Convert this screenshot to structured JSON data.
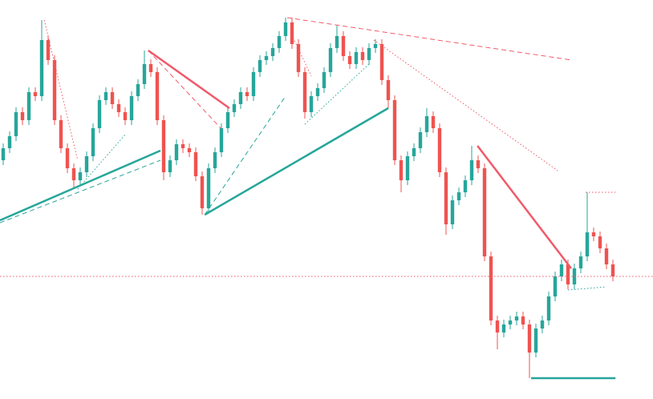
{
  "chart_data": {
    "type": "candlestick",
    "xlim": [
      -0.5,
      101.25
    ],
    "ylim": [
      0,
      498
    ],
    "up_color": "#26a69a",
    "down_color": "#ef5350",
    "open": [
      298,
      313,
      328,
      358,
      348,
      383,
      378,
      448,
      423,
      348,
      313,
      288,
      273,
      283,
      303,
      338,
      373,
      383,
      368,
      358,
      348,
      378,
      393,
      418,
      408,
      348,
      283,
      298,
      318,
      313,
      308,
      278,
      238,
      288,
      308,
      338,
      358,
      368,
      383,
      378,
      408,
      423,
      428,
      438,
      453,
      470,
      443,
      408,
      358,
      378,
      388,
      408,
      438,
      453,
      428,
      418,
      433,
      423,
      438,
      443,
      398,
      373,
      298,
      273,
      303,
      313,
      333,
      353,
      338,
      283,
      218,
      248,
      258,
      273,
      298,
      288,
      178,
      98,
      83,
      93,
      98,
      103,
      93,
      58,
      88,
      98,
      128,
      153,
      168,
      143,
      163,
      178,
      208,
      203,
      188,
      168
    ],
    "high": [
      319,
      334,
      364,
      364,
      389,
      389,
      473,
      454,
      429,
      354,
      319,
      294,
      289,
      309,
      344,
      379,
      389,
      389,
      374,
      364,
      384,
      399,
      435,
      424,
      414,
      354,
      304,
      324,
      324,
      319,
      314,
      284,
      294,
      314,
      344,
      364,
      374,
      389,
      389,
      414,
      429,
      434,
      444,
      459,
      476,
      476,
      449,
      414,
      384,
      394,
      414,
      444,
      466,
      459,
      434,
      439,
      439,
      444,
      449,
      449,
      404,
      379,
      304,
      309,
      319,
      339,
      363,
      359,
      344,
      289,
      254,
      264,
      279,
      316,
      304,
      294,
      184,
      104,
      99,
      104,
      109,
      109,
      99,
      94,
      104,
      134,
      159,
      174,
      174,
      169,
      184,
      258,
      214,
      209,
      194,
      174
    ],
    "low": [
      292,
      307,
      322,
      342,
      342,
      372,
      372,
      417,
      342,
      307,
      282,
      262,
      267,
      277,
      297,
      332,
      367,
      362,
      352,
      342,
      342,
      372,
      387,
      402,
      342,
      273,
      277,
      292,
      307,
      302,
      272,
      230,
      232,
      282,
      302,
      332,
      352,
      362,
      372,
      372,
      402,
      417,
      422,
      432,
      447,
      437,
      402,
      350,
      352,
      372,
      382,
      402,
      432,
      422,
      412,
      412,
      417,
      417,
      432,
      392,
      363,
      292,
      258,
      267,
      297,
      307,
      327,
      332,
      277,
      205,
      212,
      242,
      252,
      267,
      282,
      172,
      92,
      62,
      77,
      87,
      92,
      87,
      26,
      52,
      82,
      92,
      122,
      147,
      137,
      137,
      157,
      172,
      197,
      182,
      162,
      147
    ],
    "close": [
      313,
      328,
      358,
      348,
      383,
      378,
      448,
      423,
      348,
      313,
      288,
      273,
      283,
      303,
      338,
      373,
      383,
      368,
      358,
      348,
      378,
      393,
      418,
      408,
      348,
      283,
      298,
      318,
      313,
      308,
      278,
      238,
      288,
      308,
      338,
      358,
      368,
      383,
      378,
      408,
      423,
      428,
      438,
      453,
      470,
      443,
      408,
      358,
      378,
      388,
      408,
      438,
      453,
      428,
      418,
      433,
      423,
      438,
      443,
      398,
      373,
      298,
      273,
      303,
      313,
      333,
      353,
      338,
      283,
      218,
      248,
      258,
      273,
      298,
      288,
      178,
      98,
      83,
      93,
      98,
      103,
      93,
      58,
      88,
      98,
      128,
      153,
      168,
      143,
      163,
      178,
      208,
      203,
      188,
      168,
      153
    ],
    "lines": [
      {
        "color": "#26a69a",
        "style": "solid",
        "width": 2.5,
        "x": [
          -0.5,
          24.5
        ],
        "values": [
          223,
          310
        ]
      },
      {
        "color": "#26a69a",
        "style": "dashed",
        "width": 1,
        "x": [
          -0.5,
          24.5
        ],
        "values": [
          220,
          298
        ]
      },
      {
        "color": "#26a69a",
        "style": "solid",
        "width": 2.5,
        "x": [
          31.4,
          60
        ],
        "values": [
          230,
          363
        ]
      },
      {
        "color": "#26a69a",
        "style": "dashed",
        "width": 1,
        "x": [
          31.4,
          44
        ],
        "values": [
          230,
          378
        ]
      },
      {
        "color": "#26a69a",
        "style": "dotted",
        "width": 1,
        "x": [
          47,
          57
        ],
        "values": [
          343,
          418
        ]
      },
      {
        "color": "#26a69a",
        "style": "dotted",
        "width": 1,
        "x": [
          11.6,
          19
        ],
        "values": [
          262,
          330
        ]
      },
      {
        "color": "#26a69a",
        "style": "solid",
        "width": 2.5,
        "x": [
          82.25,
          95.4
        ],
        "values": [
          26,
          26
        ]
      },
      {
        "color": "#26a69a",
        "style": "dotted",
        "width": 1,
        "x": [
          88,
          94
        ],
        "values": [
          136,
          140
        ]
      },
      {
        "color": "#f05a6a",
        "style": "solid",
        "width": 2.5,
        "x": [
          22.6,
          35.25
        ],
        "values": [
          435,
          363
        ]
      },
      {
        "color": "#f05a6a",
        "style": "dashed",
        "width": 1,
        "x": [
          22.6,
          33.9
        ],
        "values": [
          435,
          338
        ]
      },
      {
        "color": "#f05a6a",
        "style": "solid",
        "width": 2.5,
        "x": [
          73.9,
          88.5
        ],
        "values": [
          316,
          163
        ]
      },
      {
        "color": "#f05a6a",
        "style": "dashed",
        "width": 1,
        "x": [
          44.25,
          88.6
        ],
        "values": [
          476,
          423
        ]
      },
      {
        "color": "#f05a6a",
        "style": "dotted",
        "width": 1,
        "x": [
          57.75,
          86.4
        ],
        "values": [
          448,
          285
        ]
      },
      {
        "color": "#f05a6a",
        "style": "dotted",
        "width": 1,
        "x": [
          6.4,
          11.6
        ],
        "values": [
          473,
          298
        ]
      },
      {
        "color": "#f05a6a",
        "style": "dotted",
        "width": 1,
        "x": [
          44.75,
          48
        ],
        "values": [
          458,
          403
        ]
      },
      {
        "color": "#f05a6a",
        "style": "dotted",
        "width": 1,
        "x": [
          -0.5,
          101.25
        ],
        "values": [
          153,
          153
        ]
      },
      {
        "color": "#f05a6a",
        "style": "dotted",
        "width": 1,
        "x": [
          90.75,
          95.4
        ],
        "values": [
          258,
          258
        ]
      }
    ]
  }
}
